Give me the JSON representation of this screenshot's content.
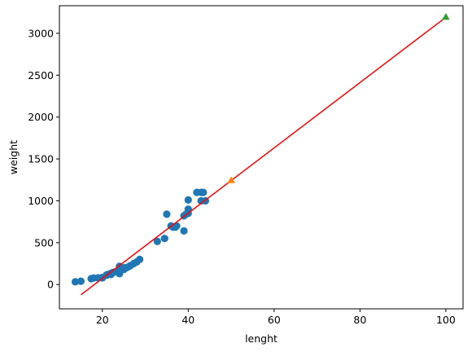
{
  "chart_data": {
    "type": "scatter",
    "title": "",
    "xlabel": "lenght",
    "ylabel": "weight",
    "xlim": [
      10,
      104
    ],
    "ylim": [
      -290,
      3330
    ],
    "xticks": [
      20,
      40,
      60,
      80,
      100
    ],
    "yticks": [
      0,
      500,
      1000,
      1500,
      2000,
      2500,
      3000
    ],
    "grid": false,
    "legend": "none",
    "series": [
      {
        "kind": "scatter",
        "marker": "circle",
        "color": "#1f77b4",
        "points": [
          [
            13.7,
            32
          ],
          [
            15.0,
            40
          ],
          [
            17.4,
            70
          ],
          [
            18.0,
            78
          ],
          [
            19.0,
            80
          ],
          [
            20.0,
            80
          ],
          [
            20.0,
            85
          ],
          [
            21.0,
            110
          ],
          [
            21.0,
            115
          ],
          [
            21.3,
            120
          ],
          [
            22.0,
            120
          ],
          [
            22.0,
            130
          ],
          [
            22.0,
            135
          ],
          [
            22.5,
            145
          ],
          [
            23.0,
            150
          ],
          [
            23.5,
            160
          ],
          [
            24.0,
            130
          ],
          [
            24.0,
            170
          ],
          [
            24.0,
            180
          ],
          [
            24.0,
            218
          ],
          [
            25.0,
            180
          ],
          [
            25.0,
            200
          ],
          [
            25.6,
            200
          ],
          [
            26.0,
            210
          ],
          [
            26.5,
            225
          ],
          [
            27.3,
            250
          ],
          [
            28.0,
            270
          ],
          [
            28.7,
            300
          ],
          [
            32.8,
            515
          ],
          [
            34.5,
            550
          ],
          [
            35.0,
            840
          ],
          [
            36.0,
            700
          ],
          [
            36.5,
            685
          ],
          [
            37.0,
            685
          ],
          [
            37.3,
            700
          ],
          [
            39.0,
            640
          ],
          [
            39.0,
            820
          ],
          [
            39.5,
            840
          ],
          [
            40.0,
            850
          ],
          [
            40.0,
            900
          ],
          [
            40.0,
            1010
          ],
          [
            42.0,
            1100
          ],
          [
            43.0,
            1000
          ],
          [
            43.0,
            1100
          ],
          [
            43.5,
            1100
          ],
          [
            44.0,
            1000
          ]
        ]
      },
      {
        "kind": "line",
        "color": "#ff0000",
        "points": [
          [
            15,
            -123
          ],
          [
            100,
            3192
          ]
        ]
      },
      {
        "kind": "scatter",
        "marker": "triangle",
        "color": "#ff7f0e",
        "points": [
          [
            50,
            1241
          ]
        ]
      },
      {
        "kind": "scatter",
        "marker": "triangle",
        "color": "#2ca02c",
        "points": [
          [
            100,
            3192
          ]
        ]
      }
    ]
  }
}
